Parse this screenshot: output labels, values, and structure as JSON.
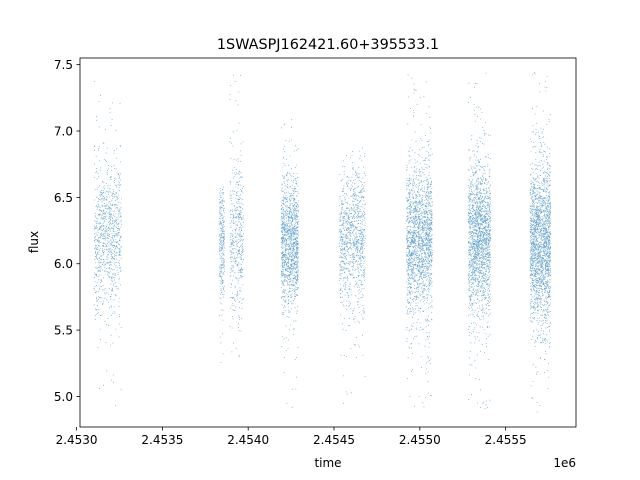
{
  "chart_data": {
    "type": "scatter",
    "title": "1SWASPJ162421.60+395533.1",
    "xlabel": "time",
    "ylabel": "flux",
    "x_offset_label": "1e6",
    "xlim": [
      2.45302,
      2.45591
    ],
    "ylim": [
      4.77,
      7.55
    ],
    "x_ticks": [
      2.453,
      2.4535,
      2.454,
      2.4545,
      2.455,
      2.4555
    ],
    "x_tick_labels": [
      "2.4530",
      "2.4535",
      "2.4540",
      "2.4545",
      "2.4550",
      "2.4555"
    ],
    "y_ticks": [
      5.0,
      5.5,
      6.0,
      6.5,
      7.0,
      7.5
    ],
    "y_tick_labels": [
      "5.0",
      "5.5",
      "6.0",
      "6.5",
      "7.0",
      "7.5"
    ],
    "grid": false,
    "point_color": "#1f77b4",
    "series": [
      {
        "clusters": [
          {
            "x_range": [
              2.4531,
              2.45326
            ],
            "y_center": 6.2,
            "y_spread": 0.28,
            "y_range": [
              4.9,
              7.45
            ],
            "density": 1.0
          },
          {
            "x_range": [
              2.45383,
              2.45386
            ],
            "y_center": 6.15,
            "y_spread": 0.25,
            "y_range": [
              5.05,
              6.6
            ],
            "density": 0.3
          },
          {
            "x_range": [
              2.45389,
              2.45397
            ],
            "y_center": 6.2,
            "y_spread": 0.3,
            "y_range": [
              5.3,
              7.45
            ],
            "density": 0.5
          },
          {
            "x_range": [
              2.45419,
              2.45429
            ],
            "y_center": 6.15,
            "y_spread": 0.25,
            "y_range": [
              4.88,
              7.1
            ],
            "density": 1.4
          },
          {
            "x_range": [
              2.45453,
              2.45468
            ],
            "y_center": 6.2,
            "y_spread": 0.25,
            "y_range": [
              4.95,
              6.9
            ],
            "density": 1.1
          },
          {
            "x_range": [
              2.45492,
              2.45507
            ],
            "y_center": 6.2,
            "y_spread": 0.28,
            "y_range": [
              4.92,
              7.45
            ],
            "density": 2.0
          },
          {
            "x_range": [
              2.45528,
              2.45541
            ],
            "y_center": 6.2,
            "y_spread": 0.28,
            "y_range": [
              4.9,
              7.45
            ],
            "density": 2.0
          },
          {
            "x_range": [
              2.45564,
              2.45576
            ],
            "y_center": 6.15,
            "y_spread": 0.3,
            "y_range": [
              4.88,
              7.45
            ],
            "density": 2.2
          }
        ]
      }
    ]
  }
}
